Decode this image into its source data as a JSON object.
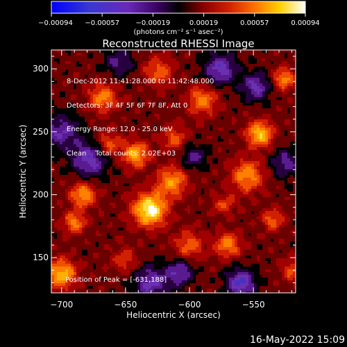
{
  "colorbar": {
    "ticks": [
      "-0.00094",
      "-0.00057",
      "-0.00019",
      "0.00019",
      "0.00057",
      "0.00094"
    ],
    "units": "(photons cm⁻² s⁻¹ asec⁻²)",
    "colors": [
      "#0000ff",
      "#5a2aa8",
      "#5a00c8",
      "#000000",
      "#a00000",
      "#e03000",
      "#ff9000",
      "#ffff00",
      "#ffffff"
    ]
  },
  "chart_data": {
    "type": "heatmap",
    "title": "Reconstructed RHESSI Image",
    "xlabel": "Heliocentric X (arcsec)",
    "ylabel": "Heliocentric Y (arcsec)",
    "xlim": [
      -708,
      -517
    ],
    "ylim": [
      122,
      315
    ],
    "x_ticks": [
      -700,
      -650,
      -600,
      -550
    ],
    "x_tick_labels": [
      "−700",
      "−650",
      "−600",
      "−550"
    ],
    "y_ticks": [
      150,
      200,
      250,
      300
    ],
    "y_tick_labels": [
      "150",
      "200",
      "250",
      "300"
    ],
    "value_range": [
      -0.00094,
      0.00094
    ],
    "peak": [
      -631,
      188
    ],
    "annotations": {
      "time_range": "8-Dec-2012 11:41:28.000 to 11:42:48.000",
      "detectors": "Detectors: 3F 4F 5F 6F 7F 8F, Att 0",
      "energy": "Energy Range: 12.0 - 25.0 keV",
      "method": "Clean    Total counts: 2.02E+03",
      "peak_label": "Position of Peak = [-631,188]"
    }
  },
  "footer": {
    "date": "16-May-2022 15:09"
  }
}
